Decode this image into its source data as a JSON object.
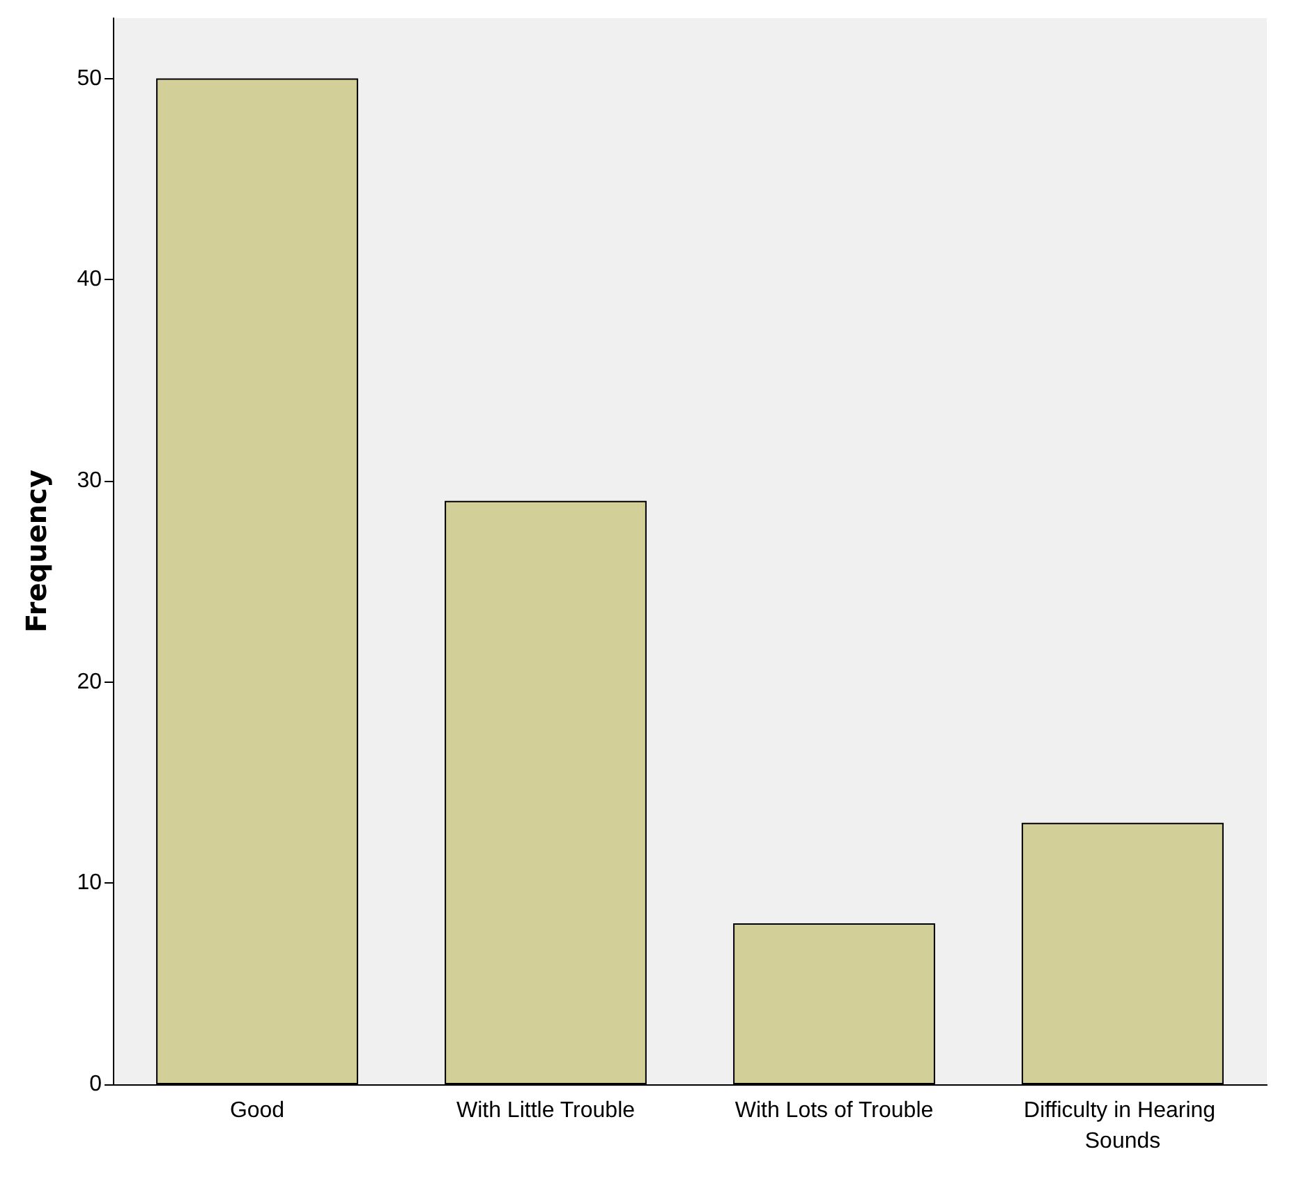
{
  "chart_data": {
    "type": "bar",
    "ylabel": "Frequency",
    "categories": [
      "Good",
      "With Little Trouble",
      "With Lots of Trouble",
      "Difficulty in Hearing Sounds"
    ],
    "values": [
      50,
      29,
      8,
      13
    ],
    "color": "#d3cf98",
    "ylim": [
      0,
      53
    ],
    "yticks": [
      0,
      10,
      20,
      30,
      40,
      50
    ],
    "grid": false
  }
}
